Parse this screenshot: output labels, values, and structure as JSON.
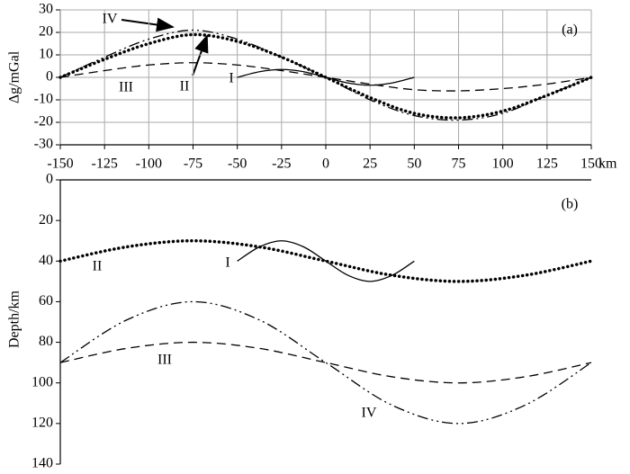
{
  "chart_data": [
    {
      "type": "line",
      "annotation": "(a)",
      "y_label": "Δg/mGal",
      "x_label": "km",
      "xlim": [
        -150,
        150
      ],
      "xticks": [
        -150,
        -125,
        -100,
        -75,
        -50,
        -25,
        0,
        25,
        50,
        75,
        100,
        125,
        150
      ],
      "ylim": [
        -30,
        30
      ],
      "yticks": [
        -30,
        -20,
        -10,
        0,
        10,
        20,
        30
      ],
      "grid": true,
      "series": [
        {
          "name": "I",
          "color": "#000000",
          "dash": "solid",
          "x": [
            -50,
            -37.5,
            -25,
            -12.5,
            0,
            12.5,
            25,
            37.5,
            50
          ],
          "values": [
            0,
            2.5,
            3.5,
            2.5,
            0,
            -2.5,
            -3.5,
            -2.5,
            0
          ]
        },
        {
          "name": "II",
          "color": "#000000",
          "dash": "dotted",
          "x": [
            -150,
            -125,
            -100,
            -75,
            -50,
            -25,
            0,
            25,
            50,
            75,
            100,
            125,
            150
          ],
          "values": [
            0,
            8,
            15,
            19,
            16,
            9,
            0,
            -9,
            -16,
            -18,
            -15,
            -8,
            0
          ]
        },
        {
          "name": "III",
          "color": "#000000",
          "dash": "dashed",
          "x": [
            -150,
            -125,
            -100,
            -75,
            -50,
            -25,
            0,
            25,
            50,
            75,
            100,
            125,
            150
          ],
          "values": [
            0,
            3,
            5.5,
            6.5,
            5.5,
            3,
            0,
            -3,
            -5.5,
            -6,
            -5,
            -3,
            0
          ]
        },
        {
          "name": "IV",
          "color": "#000000",
          "dash": "dash-dot-dot",
          "x": [
            -150,
            -125,
            -100,
            -75,
            -50,
            -25,
            0,
            25,
            50,
            75,
            100,
            125,
            150
          ],
          "values": [
            0,
            9,
            17,
            21,
            17,
            9,
            0,
            -10,
            -17,
            -19,
            -16,
            -8,
            0
          ]
        }
      ]
    },
    {
      "type": "line",
      "annotation": "(b)",
      "y_label": "Depth/km",
      "xlim": [
        -150,
        150
      ],
      "ylim": [
        0,
        140
      ],
      "invert_y": true,
      "yticks": [
        0,
        20,
        40,
        60,
        80,
        100,
        120,
        140
      ],
      "grid": false,
      "series": [
        {
          "name": "I",
          "color": "#000000",
          "dash": "solid",
          "x": [
            -50,
            -37.5,
            -25,
            -12.5,
            0,
            12.5,
            25,
            37.5,
            50
          ],
          "values": [
            40,
            33,
            30,
            33,
            40,
            47,
            50,
            47,
            40
          ]
        },
        {
          "name": "II",
          "color": "#000000",
          "dash": "dotted",
          "x": [
            -150,
            -112.5,
            -75,
            -37.5,
            0,
            37.5,
            75,
            112.5,
            150
          ],
          "values": [
            40,
            33,
            30,
            33,
            40,
            47,
            50,
            47,
            40
          ]
        },
        {
          "name": "III",
          "color": "#000000",
          "dash": "dashed",
          "x": [
            -150,
            -112.5,
            -75,
            -37.5,
            0,
            37.5,
            75,
            112.5,
            150
          ],
          "values": [
            90,
            83,
            80,
            83,
            90,
            97,
            100,
            97,
            90
          ]
        },
        {
          "name": "IV",
          "color": "#000000",
          "dash": "dash-dot-dot",
          "x": [
            -150,
            -112.5,
            -75,
            -37.5,
            0,
            37.5,
            75,
            112.5,
            150
          ],
          "values": [
            90,
            69,
            60,
            69,
            90,
            111,
            120,
            111,
            90
          ]
        }
      ]
    }
  ]
}
